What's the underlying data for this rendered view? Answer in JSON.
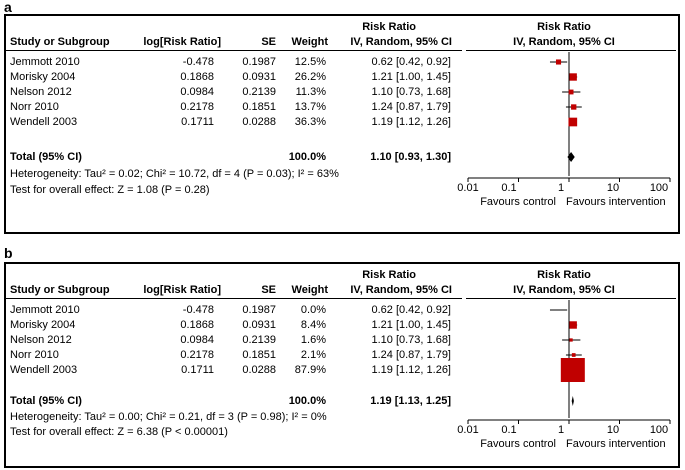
{
  "panels": [
    {
      "label": "a",
      "header": {
        "study": "Study or Subgroup",
        "logrr": "log[Risk Ratio]",
        "se": "SE",
        "weight": "Weight",
        "rr_title": "Risk Ratio",
        "rr_sub": "IV, Random, 95% CI",
        "plot_title": "Risk Ratio",
        "plot_sub": "IV, Random, 95% CI"
      },
      "rows": [
        {
          "study": "Jemmott 2010",
          "logrr": "-0.478",
          "se": "0.1987",
          "weight": "12.5%",
          "ci": "0.62 [0.42, 0.92]"
        },
        {
          "study": "Morisky 2004",
          "logrr": "0.1868",
          "se": "0.0931",
          "weight": "26.2%",
          "ci": "1.21 [1.00, 1.45]"
        },
        {
          "study": "Nelson 2012",
          "logrr": "0.0984",
          "se": "0.2139",
          "weight": "11.3%",
          "ci": "1.10 [0.73, 1.68]"
        },
        {
          "study": "Norr 2010",
          "logrr": "0.2178",
          "se": "0.1851",
          "weight": "13.7%",
          "ci": "1.24 [0.87, 1.79]"
        },
        {
          "study": "Wendell 2003",
          "logrr": "0.1711",
          "se": "0.0288",
          "weight": "36.3%",
          "ci": "1.19 [1.12, 1.26]"
        }
      ],
      "total": {
        "label": "Total (95% CI)",
        "weight": "100.0%",
        "ci": "1.10 [0.93, 1.30]"
      },
      "heterogeneity": "Heterogeneity: Tau² = 0.02; Chi² = 10.72, df = 4 (P = 0.03); I² = 63%",
      "overall": "Test for overall effect: Z = 1.08 (P = 0.28)",
      "axis": {
        "ticks": [
          "0.01",
          "0.1",
          "1",
          "10",
          "100"
        ],
        "favours_left": "Favours control",
        "favours_right": "Favours intervention"
      }
    },
    {
      "label": "b",
      "header": {
        "study": "Study or Subgroup",
        "logrr": "log[Risk Ratio]",
        "se": "SE",
        "weight": "Weight",
        "rr_title": "Risk Ratio",
        "rr_sub": "IV, Random, 95% CI",
        "plot_title": "Risk Ratio",
        "plot_sub": "IV, Random, 95% CI"
      },
      "rows": [
        {
          "study": "Jemmott 2010",
          "logrr": "-0.478",
          "se": "0.1987",
          "weight": "0.0%",
          "ci": "0.62 [0.42, 0.92]"
        },
        {
          "study": "Morisky 2004",
          "logrr": "0.1868",
          "se": "0.0931",
          "weight": "8.4%",
          "ci": "1.21 [1.00, 1.45]"
        },
        {
          "study": "Nelson 2012",
          "logrr": "0.0984",
          "se": "0.2139",
          "weight": "1.6%",
          "ci": "1.10 [0.73, 1.68]"
        },
        {
          "study": "Norr 2010",
          "logrr": "0.2178",
          "se": "0.1851",
          "weight": "2.1%",
          "ci": "1.24 [0.87, 1.79]"
        },
        {
          "study": "Wendell 2003",
          "logrr": "0.1711",
          "se": "0.0288",
          "weight": "87.9%",
          "ci": "1.19 [1.12, 1.26]"
        }
      ],
      "total": {
        "label": "Total (95% CI)",
        "weight": "100.0%",
        "ci": "1.19 [1.13, 1.25]"
      },
      "heterogeneity": "Heterogeneity: Tau² = 0.00; Chi² = 0.21, df = 3 (P = 0.98); I² = 0%",
      "overall": "Test for overall effect: Z = 6.38 (P < 0.00001)",
      "axis": {
        "ticks": [
          "0.01",
          "0.1",
          "1",
          "10",
          "100"
        ],
        "favours_left": "Favours control",
        "favours_right": "Favours intervention"
      }
    }
  ],
  "colors": {
    "marker": "#c00000",
    "diamond": "#000000"
  },
  "chart_data": [
    {
      "type": "forest",
      "panel": "a",
      "scale": "log",
      "xlim": [
        0.01,
        100
      ],
      "studies": [
        {
          "name": "Jemmott 2010",
          "rr": 0.62,
          "lo": 0.42,
          "hi": 0.92,
          "weight": 12.5
        },
        {
          "name": "Morisky 2004",
          "rr": 1.21,
          "lo": 1.0,
          "hi": 1.45,
          "weight": 26.2
        },
        {
          "name": "Nelson 2012",
          "rr": 1.1,
          "lo": 0.73,
          "hi": 1.68,
          "weight": 11.3
        },
        {
          "name": "Norr 2010",
          "rr": 1.24,
          "lo": 0.87,
          "hi": 1.79,
          "weight": 13.7
        },
        {
          "name": "Wendell 2003",
          "rr": 1.19,
          "lo": 1.12,
          "hi": 1.26,
          "weight": 36.3
        }
      ],
      "pooled": {
        "rr": 1.1,
        "lo": 0.93,
        "hi": 1.3
      }
    },
    {
      "type": "forest",
      "panel": "b",
      "scale": "log",
      "xlim": [
        0.01,
        100
      ],
      "studies": [
        {
          "name": "Jemmott 2010",
          "rr": 0.62,
          "lo": 0.42,
          "hi": 0.92,
          "weight": 0.0
        },
        {
          "name": "Morisky 2004",
          "rr": 1.21,
          "lo": 1.0,
          "hi": 1.45,
          "weight": 8.4
        },
        {
          "name": "Nelson 2012",
          "rr": 1.1,
          "lo": 0.73,
          "hi": 1.68,
          "weight": 1.6
        },
        {
          "name": "Norr 2010",
          "rr": 1.24,
          "lo": 0.87,
          "hi": 1.79,
          "weight": 2.1
        },
        {
          "name": "Wendell 2003",
          "rr": 1.19,
          "lo": 1.12,
          "hi": 1.26,
          "weight": 87.9
        }
      ],
      "pooled": {
        "rr": 1.19,
        "lo": 1.13,
        "hi": 1.25
      }
    }
  ]
}
